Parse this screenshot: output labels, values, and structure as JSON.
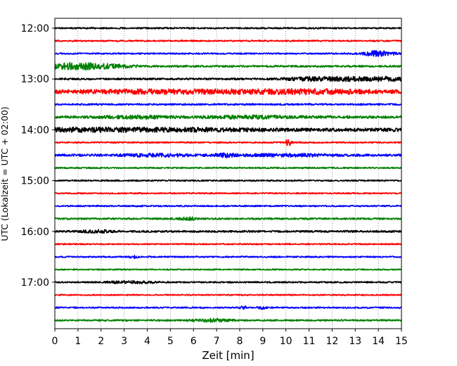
{
  "chart_data": {
    "type": "line",
    "chart_kind": "helicorder",
    "xlabel": "Zeit  [min]",
    "ylabel": "UTC (Lokalzeit = UTC + 02:00)",
    "xlim": [
      0,
      15
    ],
    "x_ticks": [
      "0",
      "1",
      "2",
      "3",
      "4",
      "5",
      "6",
      "7",
      "8",
      "9",
      "10",
      "11",
      "12",
      "13",
      "14",
      "15"
    ],
    "x_grid": "dotted vertical lines at each minute",
    "y_tick_labels": [
      {
        "label": "12:00",
        "row": 0
      },
      {
        "label": "13:00",
        "row": 4
      },
      {
        "label": "14:00",
        "row": 8
      },
      {
        "label": "15:00",
        "row": 12
      },
      {
        "label": "16:00",
        "row": 16
      },
      {
        "label": "17:00",
        "row": 20
      }
    ],
    "minutes_per_row": 15,
    "colors": [
      "#000000",
      "#ff0000",
      "#0000ff",
      "#008000"
    ],
    "rows": [
      {
        "start": "12:00",
        "color": "#000000",
        "amplitude": 1.0,
        "events": []
      },
      {
        "start": "12:15",
        "color": "#ff0000",
        "amplitude": 1.0,
        "events": []
      },
      {
        "start": "12:30",
        "color": "#0000ff",
        "amplitude": 1.0,
        "events": [
          {
            "minute": 14.0,
            "strength": 3.5,
            "width": 0.7
          }
        ]
      },
      {
        "start": "12:45",
        "color": "#008000",
        "amplitude": 1.3,
        "events": [
          {
            "minute": 0.9,
            "strength": 4.0,
            "width": 1.3
          },
          {
            "minute": 2.5,
            "strength": 1.5,
            "width": 1.0
          }
        ]
      },
      {
        "start": "13:00",
        "color": "#000000",
        "amplitude": 1.3,
        "events": [
          {
            "minute": 11.2,
            "strength": 2.2,
            "width": 1.2
          },
          {
            "minute": 13.0,
            "strength": 2.0,
            "width": 1.2
          },
          {
            "minute": 14.5,
            "strength": 2.0,
            "width": 0.8
          }
        ]
      },
      {
        "start": "13:15",
        "color": "#ff0000",
        "amplitude": 2.4,
        "events": [
          {
            "minute": 4.0,
            "strength": 1.5,
            "width": 3.0
          },
          {
            "minute": 9.0,
            "strength": 1.5,
            "width": 3.0
          },
          {
            "minute": 12.0,
            "strength": 1.3,
            "width": 2.0
          }
        ]
      },
      {
        "start": "13:30",
        "color": "#0000ff",
        "amplitude": 1.2,
        "events": []
      },
      {
        "start": "13:45",
        "color": "#008000",
        "amplitude": 1.8,
        "events": [
          {
            "minute": 3.5,
            "strength": 1.3,
            "width": 1.5
          },
          {
            "minute": 8.5,
            "strength": 1.3,
            "width": 2.0
          }
        ]
      },
      {
        "start": "14:00",
        "color": "#000000",
        "amplitude": 2.4,
        "events": [
          {
            "minute": 1.5,
            "strength": 1.5,
            "width": 2.0
          },
          {
            "minute": 5.5,
            "strength": 1.3,
            "width": 2.5
          }
        ]
      },
      {
        "start": "14:15",
        "color": "#ff0000",
        "amplitude": 1.0,
        "events": [
          {
            "minute": 10.1,
            "strength": 5.0,
            "width": 0.12
          }
        ]
      },
      {
        "start": "14:30",
        "color": "#0000ff",
        "amplitude": 1.6,
        "events": [
          {
            "minute": 4.5,
            "strength": 1.3,
            "width": 1.5
          },
          {
            "minute": 7.4,
            "strength": 2.0,
            "width": 0.4
          },
          {
            "minute": 10.0,
            "strength": 1.3,
            "width": 2.0
          }
        ]
      },
      {
        "start": "14:45",
        "color": "#008000",
        "amplitude": 1.0,
        "events": []
      },
      {
        "start": "15:00",
        "color": "#000000",
        "amplitude": 1.0,
        "events": []
      },
      {
        "start": "15:15",
        "color": "#ff0000",
        "amplitude": 0.9,
        "events": []
      },
      {
        "start": "15:30",
        "color": "#0000ff",
        "amplitude": 1.0,
        "events": []
      },
      {
        "start": "15:45",
        "color": "#008000",
        "amplitude": 1.2,
        "events": [
          {
            "minute": 5.8,
            "strength": 1.5,
            "width": 0.5
          }
        ]
      },
      {
        "start": "16:00",
        "color": "#000000",
        "amplitude": 1.3,
        "events": [
          {
            "minute": 1.8,
            "strength": 1.6,
            "width": 0.6
          }
        ]
      },
      {
        "start": "16:15",
        "color": "#ff0000",
        "amplitude": 0.9,
        "events": []
      },
      {
        "start": "16:30",
        "color": "#0000ff",
        "amplitude": 1.0,
        "events": [
          {
            "minute": 3.4,
            "strength": 2.5,
            "width": 0.15
          }
        ]
      },
      {
        "start": "16:45",
        "color": "#008000",
        "amplitude": 0.9,
        "events": []
      },
      {
        "start": "17:00",
        "color": "#000000",
        "amplitude": 1.0,
        "events": [
          {
            "minute": 3.3,
            "strength": 1.5,
            "width": 1.0
          }
        ]
      },
      {
        "start": "17:15",
        "color": "#ff0000",
        "amplitude": 0.9,
        "events": []
      },
      {
        "start": "17:30",
        "color": "#0000ff",
        "amplitude": 1.0,
        "events": [
          {
            "minute": 8.2,
            "strength": 1.5,
            "width": 0.2
          },
          {
            "minute": 9.0,
            "strength": 1.5,
            "width": 0.2
          }
        ]
      },
      {
        "start": "17:45",
        "color": "#008000",
        "amplitude": 1.1,
        "events": [
          {
            "minute": 6.8,
            "strength": 1.8,
            "width": 0.8
          }
        ]
      }
    ]
  }
}
